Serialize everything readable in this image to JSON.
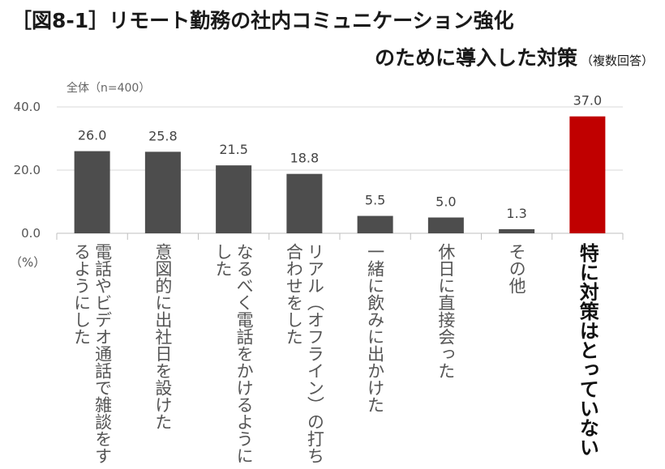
{
  "title": {
    "line1": "［図8-1］リモート勤務の社内コミュニケーション強化",
    "line2": "のために導入した対策",
    "note": "（複数回答）"
  },
  "sample_label": "全体（n=400）",
  "unit_label": "（%）",
  "colors": {
    "bar": "#4d4d4d",
    "highlight": "#c00000",
    "grid": "#d9d9d9"
  },
  "chart_data": {
    "type": "bar",
    "categories": [
      "電話やビデオ通話で雑談をするようにした",
      "意図的に出社日を設けた",
      "なるべく電話をかけるようにした",
      "リアル（オフライン）の打ち合わせをした",
      "一緒に飲みに出かけた",
      "休日に直接会った",
      "その他",
      "特に対策はとっていない"
    ],
    "values": [
      26.0,
      25.8,
      21.5,
      18.8,
      5.5,
      5.0,
      1.3,
      37.0
    ],
    "value_labels": [
      "26.0",
      "25.8",
      "21.5",
      "18.8",
      "5.5",
      "5.0",
      "1.3",
      "37.0"
    ],
    "highlight_index": 7,
    "ylim": [
      0,
      40
    ],
    "yticks": [
      0,
      20,
      40
    ],
    "ytick_labels": [
      "0.0",
      "20.0",
      "40.0"
    ],
    "grid": true
  }
}
